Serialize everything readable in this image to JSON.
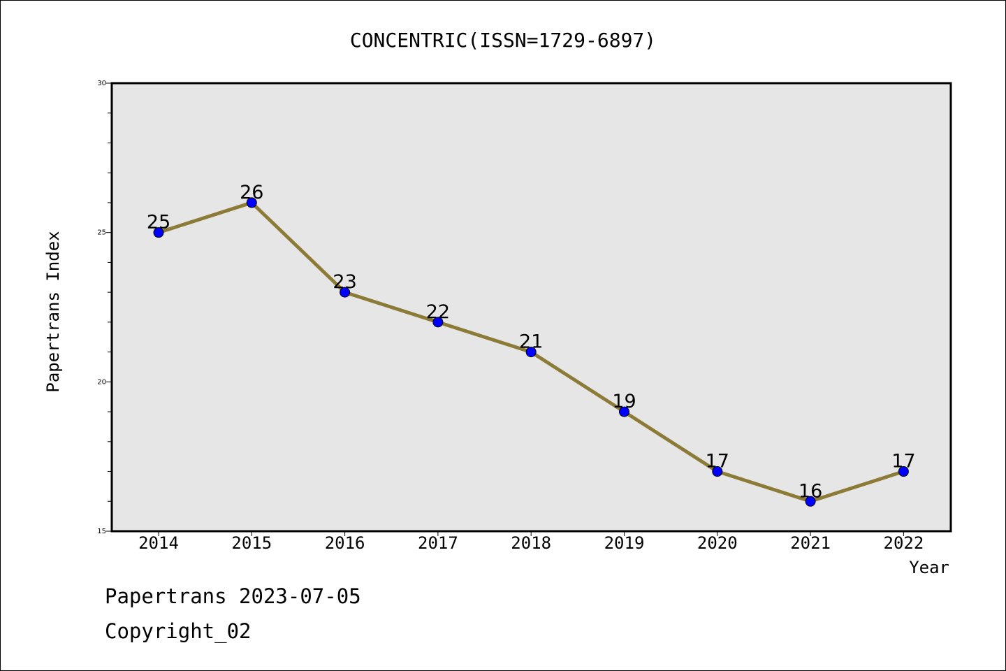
{
  "chart_data": {
    "type": "line",
    "title": "CONCENTRIC(ISSN=1729-6897)",
    "xlabel": "Year",
    "ylabel": "Papertrans Index",
    "categories": [
      "2014",
      "2015",
      "2016",
      "2017",
      "2018",
      "2019",
      "2020",
      "2021",
      "2022"
    ],
    "series": [
      {
        "values": [
          25,
          26,
          23,
          22,
          21,
          19,
          17,
          16,
          17
        ]
      }
    ],
    "data_labels": [
      "25",
      "26",
      "23",
      "22",
      "21",
      "19",
      "17",
      "16",
      "17"
    ],
    "ylim": [
      15,
      30
    ],
    "y_ticks": [
      15,
      20,
      25,
      30
    ],
    "y_tick_labels": [
      "15",
      "20",
      "25",
      "30"
    ],
    "y_minor_step": 1,
    "grid": false,
    "line_color": "#8c7b37",
    "marker_color": "#0000ff",
    "plot_background": "#e6e6e6"
  },
  "footer": {
    "line1": "Papertrans 2023-07-05",
    "line2": "Copyright_02"
  }
}
